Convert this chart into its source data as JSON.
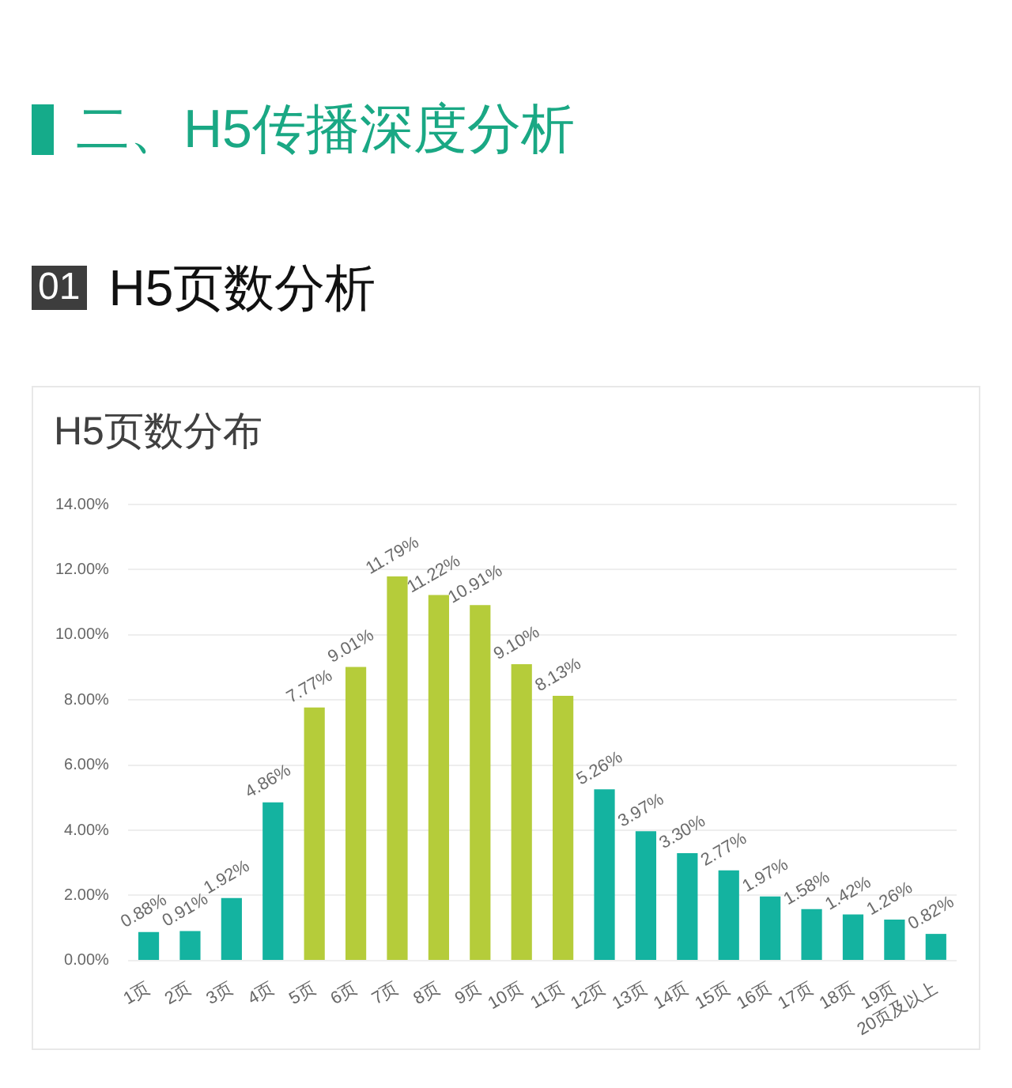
{
  "chart_data": {
    "type": "bar",
    "title": "H5页数分布",
    "annotations": [
      "二、H5传播深度分析",
      "01",
      "H5页数分析"
    ],
    "categories": [
      "1页",
      "2页",
      "3页",
      "4页",
      "5页",
      "6页",
      "7页",
      "8页",
      "9页",
      "10页",
      "11页",
      "12页",
      "13页",
      "14页",
      "15页",
      "16页",
      "17页",
      "18页",
      "19页",
      "20页及以上"
    ],
    "values": [
      0.88,
      0.91,
      1.92,
      4.86,
      7.77,
      9.01,
      11.79,
      11.22,
      10.91,
      9.1,
      8.13,
      5.26,
      3.97,
      3.3,
      2.77,
      1.97,
      1.58,
      1.42,
      1.26,
      0.82
    ],
    "value_labels": [
      "0.88%",
      "0.91%",
      "1.92%",
      "4.86%",
      "7.77%",
      "9.01%",
      "11.79%",
      "11.22%",
      "10.91%",
      "9.10%",
      "8.13%",
      "5.26%",
      "3.97%",
      "3.30%",
      "2.77%",
      "1.97%",
      "1.58%",
      "1.42%",
      "1.26%",
      "0.82%"
    ],
    "colors": [
      "#14b3a0",
      "#14b3a0",
      "#14b3a0",
      "#14b3a0",
      "#b5cc3a",
      "#b5cc3a",
      "#b5cc3a",
      "#b5cc3a",
      "#b5cc3a",
      "#b5cc3a",
      "#b5cc3a",
      "#14b3a0",
      "#14b3a0",
      "#14b3a0",
      "#14b3a0",
      "#14b3a0",
      "#14b3a0",
      "#14b3a0",
      "#14b3a0",
      "#14b3a0"
    ],
    "ylim": [
      0,
      14
    ],
    "yticks": [
      {
        "value": 0,
        "label": "0.00%"
      },
      {
        "value": 2,
        "label": "2.00%"
      },
      {
        "value": 4,
        "label": "4.00%"
      },
      {
        "value": 6,
        "label": "6.00%"
      },
      {
        "value": 8,
        "label": "8.00%"
      },
      {
        "value": 10,
        "label": "10.00%"
      },
      {
        "value": 12,
        "label": "12.00%"
      },
      {
        "value": 14,
        "label": "14.00%"
      }
    ],
    "grid": "y"
  }
}
